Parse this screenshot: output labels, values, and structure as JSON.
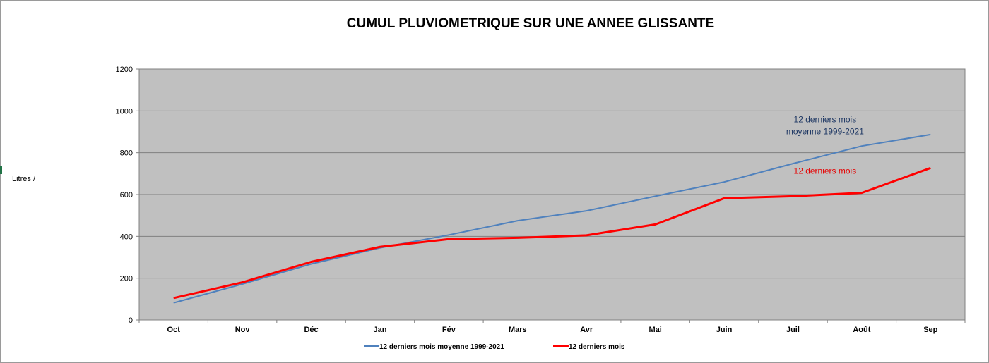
{
  "chart_data": {
    "type": "line",
    "title": "CUMUL PLUVIOMETRIQUE SUR UNE ANNEE GLISSANTE",
    "ylabel": "Litres /",
    "xlabel": "",
    "ylim": [
      0,
      1200
    ],
    "yticks": [
      0,
      200,
      400,
      600,
      800,
      1000,
      1200
    ],
    "categories": [
      "Oct",
      "Nov",
      "Déc",
      "Jan",
      "Fév",
      "Mars",
      "Avr",
      "Mai",
      "Juin",
      "Juil",
      "Août",
      "Sep"
    ],
    "series": [
      {
        "name": "12 derniers mois moyenne 1999-2021",
        "color": "#4f81bd",
        "values": [
          82,
          172,
          268,
          345,
          407,
          475,
          522,
          592,
          660,
          748,
          832,
          887
        ]
      },
      {
        "name": "12 derniers mois",
        "color": "#ff0000",
        "values": [
          105,
          180,
          278,
          350,
          387,
          393,
          405,
          457,
          582,
          592,
          608,
          727
        ]
      }
    ],
    "annotations": [
      {
        "lines": [
          "12 derniers mois",
          "moyenne 1999-2021"
        ],
        "color": "#1f3864",
        "at_category": "Août",
        "at_value": 945
      },
      {
        "lines": [
          "12 derniers mois"
        ],
        "color": "#e60000",
        "at_category": "Août",
        "at_value": 700
      }
    ],
    "grid": true,
    "plot_background": "#c0c0c0",
    "legend": "bottom"
  }
}
